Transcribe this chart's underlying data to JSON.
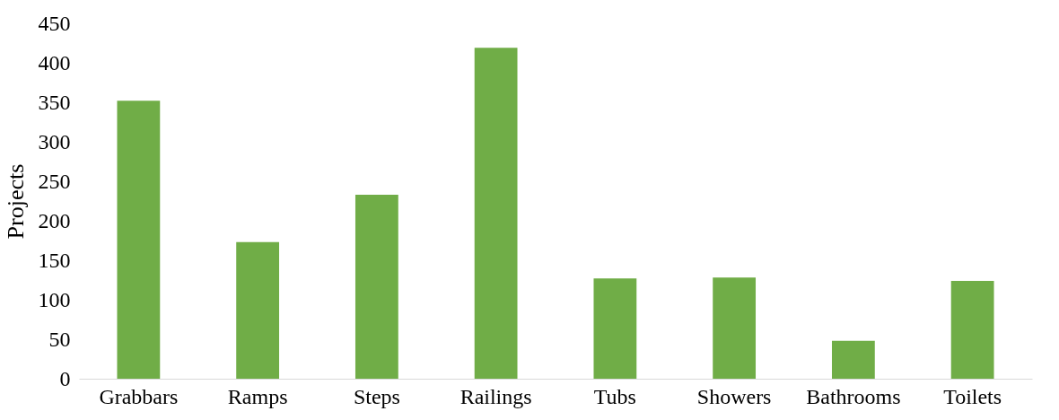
{
  "chart_data": {
    "type": "bar",
    "ylabel": "Projects",
    "categories": [
      "Grabbars",
      "Ramps",
      "Steps",
      "Railings",
      "Tubs",
      "Showers",
      "Bathrooms",
      "Toilets"
    ],
    "values": [
      352,
      173,
      233,
      419,
      127,
      128,
      48,
      124
    ],
    "color": "#70ad47",
    "ylim": [
      0,
      450
    ],
    "yticks": [
      0,
      50,
      100,
      150,
      200,
      250,
      300,
      350,
      400,
      450
    ],
    "grid": false
  }
}
